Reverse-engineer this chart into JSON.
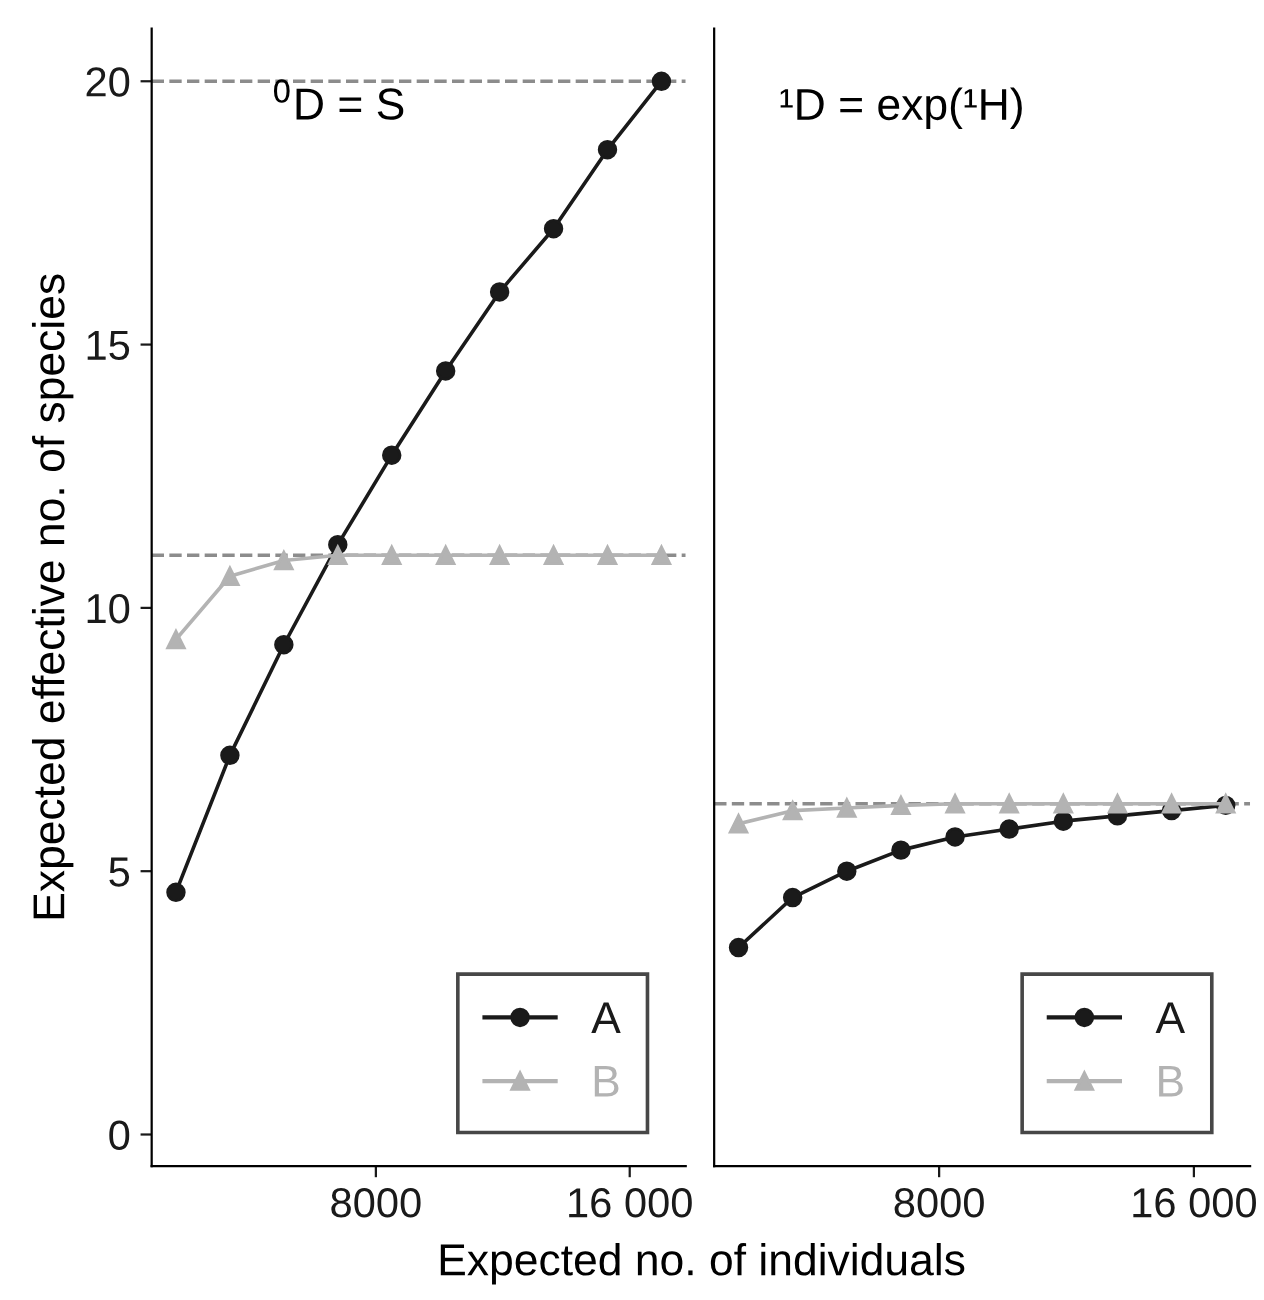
{
  "chart_data": [
    {
      "type": "line",
      "annotations": [
        "$^{0}$D = S"
      ],
      "xlabel": "Expected no. of individuals",
      "ylabel": "Expected effective no. of species",
      "x": [
        1700,
        3400,
        5100,
        6800,
        8500,
        10200,
        11900,
        13600,
        15300,
        17000
      ],
      "series": [
        {
          "name": "A",
          "color": "#1a1a1a",
          "marker": "circle",
          "values": [
            4.6,
            7.2,
            9.3,
            11.2,
            12.9,
            14.5,
            16.0,
            17.2,
            18.7,
            20.0
          ]
        },
        {
          "name": "B",
          "color": "#b3b3b3",
          "marker": "triangle",
          "values": [
            9.4,
            10.6,
            10.9,
            11.0,
            11.0,
            11.0,
            11.0,
            11.0,
            11.0,
            11.0
          ]
        }
      ],
      "ref_lines": [
        {
          "axis": "y",
          "value": 20,
          "color": "#8c8c8c",
          "line_style": "dashed"
        },
        {
          "axis": "y",
          "value": 11,
          "color": "#8c8c8c",
          "line_style": "dashed"
        }
      ],
      "xlim": [
        935,
        17765
      ],
      "xticks": [
        8000,
        {
          "value": 16000,
          "label": "16 000"
        }
      ],
      "ylim": [
        -0.6,
        21
      ],
      "yticks": [
        0,
        5,
        10,
        15,
        20
      ],
      "legend": "bottom right",
      "grid": false,
      "line_style": "solid"
    },
    {
      "type": "line",
      "annotations": [
        "¹D = exp(¹H)"
      ],
      "x": [
        1700,
        3400,
        5100,
        6800,
        8500,
        10200,
        11900,
        13600,
        15300,
        17000
      ],
      "series": [
        {
          "name": "A",
          "color": "#1a1a1a",
          "marker": "circle",
          "values": [
            3.55,
            4.5,
            5.0,
            5.4,
            5.65,
            5.8,
            5.95,
            6.05,
            6.15,
            6.25
          ]
        },
        {
          "name": "B",
          "color": "#b3b3b3",
          "marker": "triangle",
          "values": [
            5.9,
            6.15,
            6.2,
            6.25,
            6.28,
            6.28,
            6.28,
            6.28,
            6.28,
            6.28
          ]
        }
      ],
      "ref_lines": [
        {
          "axis": "y",
          "value": 6.28,
          "color": "#8c8c8c",
          "line_style": "dashed"
        }
      ],
      "xlim": [
        935,
        17765
      ],
      "xticks": [
        8000,
        {
          "value": 16000,
          "label": "16 000"
        }
      ],
      "ylim": [
        -0.6,
        21
      ],
      "yticks": [
        0,
        5,
        10,
        15,
        20
      ],
      "tick_labels": "x",
      "legend": "bottom right",
      "grid": false,
      "line_style": "solid"
    }
  ]
}
